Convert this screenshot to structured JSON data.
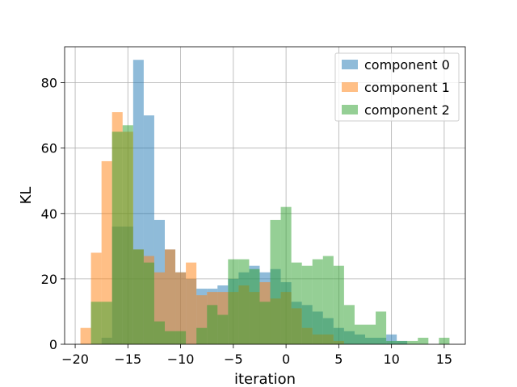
{
  "chart_data": {
    "type": "bar",
    "subtype": "overlaid-histogram",
    "xlabel": "iteration",
    "ylabel": "KL",
    "xlim": [
      -21,
      17
    ],
    "ylim": [
      0,
      91
    ],
    "xticks": [
      -20,
      -15,
      -10,
      -5,
      0,
      5,
      10,
      15
    ],
    "yticks": [
      0,
      20,
      40,
      60,
      80
    ],
    "grid": true,
    "legend_position": "top-right",
    "bin_width": 1,
    "series": [
      {
        "name": "component 0",
        "color": "#1f77b4",
        "opacity": 0.5,
        "bins": [
          {
            "x0": -17.5,
            "value": 2
          },
          {
            "x0": -16.5,
            "value": 36
          },
          {
            "x0": -15.5,
            "value": 36
          },
          {
            "x0": -14.5,
            "value": 87
          },
          {
            "x0": -13.5,
            "value": 70
          },
          {
            "x0": -12.5,
            "value": 38
          },
          {
            "x0": -11.5,
            "value": 29
          },
          {
            "x0": -10.5,
            "value": 22
          },
          {
            "x0": -9.5,
            "value": 20
          },
          {
            "x0": -8.5,
            "value": 17
          },
          {
            "x0": -7.5,
            "value": 17
          },
          {
            "x0": -6.5,
            "value": 18
          },
          {
            "x0": -5.5,
            "value": 20
          },
          {
            "x0": -4.5,
            "value": 22
          },
          {
            "x0": -3.5,
            "value": 24
          },
          {
            "x0": -2.5,
            "value": 22
          },
          {
            "x0": -1.5,
            "value": 23
          },
          {
            "x0": -0.5,
            "value": 19
          },
          {
            "x0": 0.5,
            "value": 13
          },
          {
            "x0": 1.5,
            "value": 12
          },
          {
            "x0": 2.5,
            "value": 10
          },
          {
            "x0": 3.5,
            "value": 8
          },
          {
            "x0": 4.5,
            "value": 5
          },
          {
            "x0": 5.5,
            "value": 4
          },
          {
            "x0": 6.5,
            "value": 3
          },
          {
            "x0": 7.5,
            "value": 2
          },
          {
            "x0": 8.5,
            "value": 2
          },
          {
            "x0": 9.5,
            "value": 3
          },
          {
            "x0": 10.5,
            "value": 1
          }
        ]
      },
      {
        "name": "component 1",
        "color": "#ff7f0e",
        "opacity": 0.5,
        "bins": [
          {
            "x0": -19.5,
            "value": 5
          },
          {
            "x0": -18.5,
            "value": 28
          },
          {
            "x0": -17.5,
            "value": 56
          },
          {
            "x0": -16.5,
            "value": 71
          },
          {
            "x0": -15.5,
            "value": 65
          },
          {
            "x0": -14.5,
            "value": 29
          },
          {
            "x0": -13.5,
            "value": 27
          },
          {
            "x0": -12.5,
            "value": 22
          },
          {
            "x0": -11.5,
            "value": 29
          },
          {
            "x0": -10.5,
            "value": 22
          },
          {
            "x0": -9.5,
            "value": 25
          },
          {
            "x0": -8.5,
            "value": 15
          },
          {
            "x0": -7.5,
            "value": 16
          },
          {
            "x0": -6.5,
            "value": 16
          },
          {
            "x0": -5.5,
            "value": 16
          },
          {
            "x0": -4.5,
            "value": 18
          },
          {
            "x0": -3.5,
            "value": 16
          },
          {
            "x0": -2.5,
            "value": 19
          },
          {
            "x0": -1.5,
            "value": 14
          },
          {
            "x0": -0.5,
            "value": 16
          },
          {
            "x0": 0.5,
            "value": 11
          },
          {
            "x0": 1.5,
            "value": 5
          },
          {
            "x0": 2.5,
            "value": 3
          },
          {
            "x0": 3.5,
            "value": 3
          },
          {
            "x0": 4.5,
            "value": 1
          }
        ]
      },
      {
        "name": "component 2",
        "color": "#2ca02c",
        "opacity": 0.5,
        "bins": [
          {
            "x0": -18.5,
            "value": 13
          },
          {
            "x0": -17.5,
            "value": 13
          },
          {
            "x0": -16.5,
            "value": 65
          },
          {
            "x0": -15.5,
            "value": 67
          },
          {
            "x0": -14.5,
            "value": 29
          },
          {
            "x0": -13.5,
            "value": 25
          },
          {
            "x0": -12.5,
            "value": 7
          },
          {
            "x0": -11.5,
            "value": 4
          },
          {
            "x0": -10.5,
            "value": 4
          },
          {
            "x0": -9.5,
            "value": 0
          },
          {
            "x0": -8.5,
            "value": 5
          },
          {
            "x0": -7.5,
            "value": 12
          },
          {
            "x0": -6.5,
            "value": 9
          },
          {
            "x0": -5.5,
            "value": 26
          },
          {
            "x0": -4.5,
            "value": 26
          },
          {
            "x0": -3.5,
            "value": 23
          },
          {
            "x0": -2.5,
            "value": 13
          },
          {
            "x0": -1.5,
            "value": 38
          },
          {
            "x0": -0.5,
            "value": 42
          },
          {
            "x0": 0.5,
            "value": 25
          },
          {
            "x0": 1.5,
            "value": 24
          },
          {
            "x0": 2.5,
            "value": 26
          },
          {
            "x0": 3.5,
            "value": 27
          },
          {
            "x0": 4.5,
            "value": 24
          },
          {
            "x0": 5.5,
            "value": 12
          },
          {
            "x0": 6.5,
            "value": 6
          },
          {
            "x0": 7.5,
            "value": 6
          },
          {
            "x0": 8.5,
            "value": 10
          },
          {
            "x0": 9.5,
            "value": 1
          },
          {
            "x0": 10.5,
            "value": 1
          },
          {
            "x0": 11.5,
            "value": 1
          },
          {
            "x0": 12.5,
            "value": 2
          },
          {
            "x0": 13.5,
            "value": 0
          },
          {
            "x0": 14.5,
            "value": 2
          }
        ]
      }
    ]
  }
}
